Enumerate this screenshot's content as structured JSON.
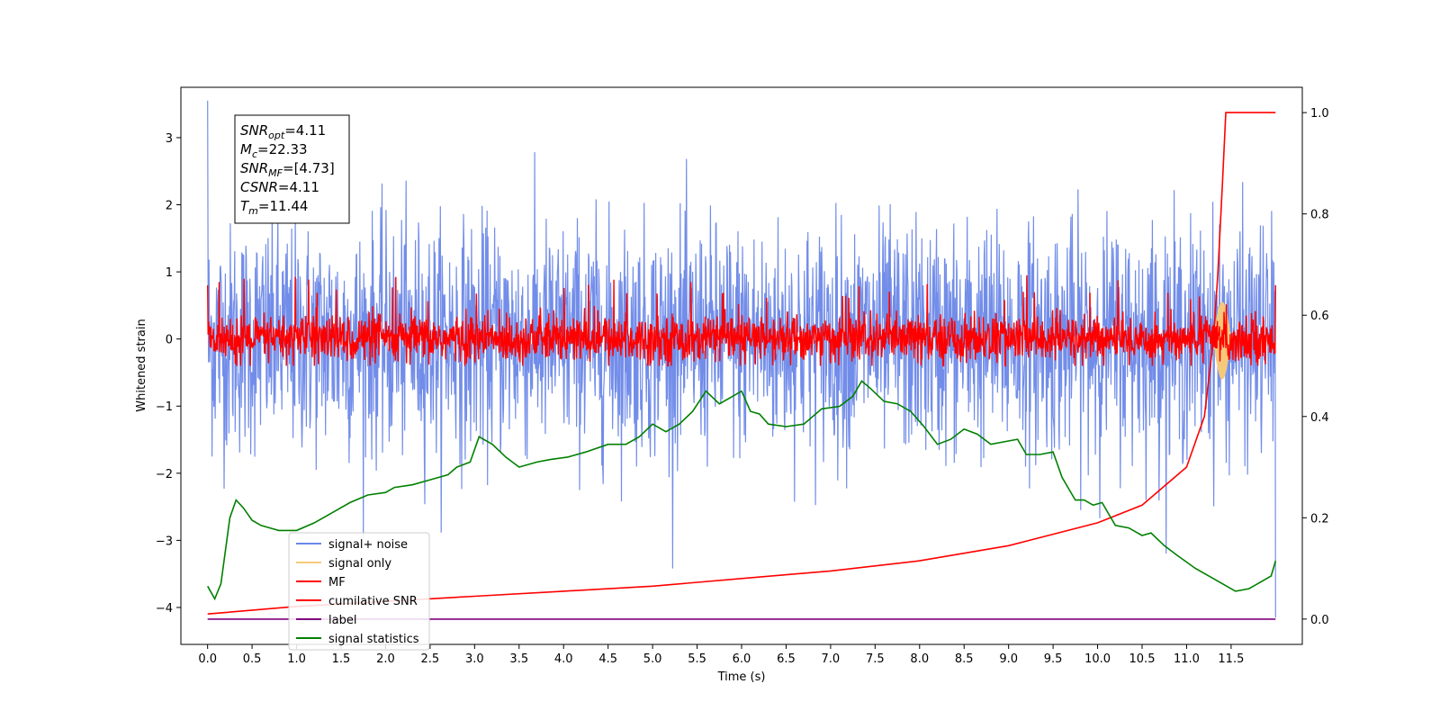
{
  "chart_data": {
    "type": "line",
    "xlabel": "Time (s)",
    "ylabel": "Whitened strain",
    "xlim": [
      -0.3,
      12.3
    ],
    "ylim": [
      -4.55,
      3.75
    ],
    "y2lim": [
      -0.05,
      1.05
    ],
    "xticks": [
      "0.0",
      "0.5",
      "1.0",
      "1.5",
      "2.0",
      "2.5",
      "3.0",
      "3.5",
      "4.0",
      "4.5",
      "5.0",
      "5.5",
      "6.0",
      "6.5",
      "7.0",
      "7.5",
      "8.0",
      "8.5",
      "9.0",
      "9.5",
      "10.0",
      "10.5",
      "11.0",
      "11.5"
    ],
    "yticks": [
      "3",
      "2",
      "1",
      "0",
      "−1",
      "−2",
      "−3",
      "−4"
    ],
    "y2ticks": [
      "1.0",
      "0.8",
      "0.6",
      "0.4",
      "0.2",
      "0.0"
    ],
    "legend_position": "lower left",
    "series": [
      {
        "name": "signal+ noise",
        "axis": "left",
        "color": "#6a87e8",
        "description_values": {
          "x_range": [
            0,
            12
          ],
          "mean": 0.0,
          "std": 0.85,
          "min": -4.15,
          "max": 3.55
        }
      },
      {
        "name": "signal only",
        "axis": "left",
        "color": "#f5c97a",
        "description_values": {
          "x_range": [
            11.3,
            11.5
          ],
          "min": -0.6,
          "max": 0.55
        }
      },
      {
        "name": "MF",
        "axis": "left",
        "color": "#ff0000",
        "description_values": {
          "x_range": [
            0,
            12
          ],
          "mean": 0.0,
          "std": 0.18,
          "min": -0.4,
          "max": 0.95
        }
      },
      {
        "name": "cumilative SNR",
        "axis": "right",
        "color": "#ff0000",
        "x": [
          0,
          1,
          2,
          3,
          4,
          5,
          6,
          7,
          8,
          9,
          10,
          10.5,
          11.0,
          11.2,
          11.3,
          11.35,
          11.4,
          11.44,
          11.5,
          12.0
        ],
        "values": [
          0.01,
          0.025,
          0.035,
          0.045,
          0.055,
          0.065,
          0.08,
          0.095,
          0.115,
          0.145,
          0.19,
          0.225,
          0.3,
          0.4,
          0.55,
          0.68,
          0.85,
          1.0,
          1.0,
          1.0
        ]
      },
      {
        "name": "label",
        "axis": "right",
        "color": "#800080",
        "x": [
          0,
          12
        ],
        "values": [
          0.0,
          0.0
        ]
      },
      {
        "name": "signal statistics",
        "axis": "right",
        "color": "#008000",
        "x": [
          0,
          0.08,
          0.15,
          0.25,
          0.32,
          0.4,
          0.5,
          0.6,
          0.7,
          0.8,
          1.0,
          1.2,
          1.4,
          1.6,
          1.8,
          2.0,
          2.1,
          2.3,
          2.5,
          2.7,
          2.8,
          2.95,
          3.05,
          3.2,
          3.35,
          3.5,
          3.7,
          3.85,
          4.05,
          4.25,
          4.5,
          4.7,
          4.85,
          5.0,
          5.15,
          5.3,
          5.45,
          5.6,
          5.75,
          5.9,
          6.0,
          6.1,
          6.2,
          6.3,
          6.5,
          6.7,
          6.9,
          7.1,
          7.25,
          7.35,
          7.45,
          7.6,
          7.75,
          7.9,
          8.05,
          8.2,
          8.35,
          8.5,
          8.65,
          8.8,
          8.95,
          9.1,
          9.2,
          9.35,
          9.5,
          9.6,
          9.75,
          9.85,
          9.95,
          10.05,
          10.2,
          10.35,
          10.5,
          10.6,
          10.75,
          10.9,
          11.1,
          11.3,
          11.55,
          11.7,
          11.85,
          11.95,
          12.0
        ],
        "values": [
          0.065,
          0.04,
          0.07,
          0.2,
          0.235,
          0.22,
          0.195,
          0.185,
          0.18,
          0.175,
          0.175,
          0.19,
          0.21,
          0.23,
          0.245,
          0.25,
          0.26,
          0.265,
          0.275,
          0.285,
          0.3,
          0.31,
          0.36,
          0.345,
          0.32,
          0.3,
          0.31,
          0.315,
          0.32,
          0.33,
          0.345,
          0.345,
          0.36,
          0.385,
          0.37,
          0.385,
          0.41,
          0.45,
          0.425,
          0.44,
          0.45,
          0.41,
          0.405,
          0.385,
          0.38,
          0.385,
          0.415,
          0.42,
          0.44,
          0.47,
          0.455,
          0.43,
          0.425,
          0.41,
          0.38,
          0.345,
          0.355,
          0.375,
          0.365,
          0.345,
          0.35,
          0.355,
          0.325,
          0.325,
          0.33,
          0.28,
          0.235,
          0.235,
          0.225,
          0.23,
          0.185,
          0.18,
          0.165,
          0.17,
          0.145,
          0.125,
          0.1,
          0.08,
          0.055,
          0.06,
          0.075,
          0.085,
          0.115
        ]
      }
    ],
    "annotation_box": [
      {
        "sym": "SNR",
        "sub": "opt",
        "value": "=4.11"
      },
      {
        "sym": "M",
        "sub": "c",
        "value": "=22.33"
      },
      {
        "sym": "SNR",
        "sub": "MF",
        "value": "=[4.73]"
      },
      {
        "sym": "CSNR",
        "sub": "",
        "value": "=4.11"
      },
      {
        "sym": "T",
        "sub": "m",
        "value": "=11.44"
      }
    ]
  }
}
